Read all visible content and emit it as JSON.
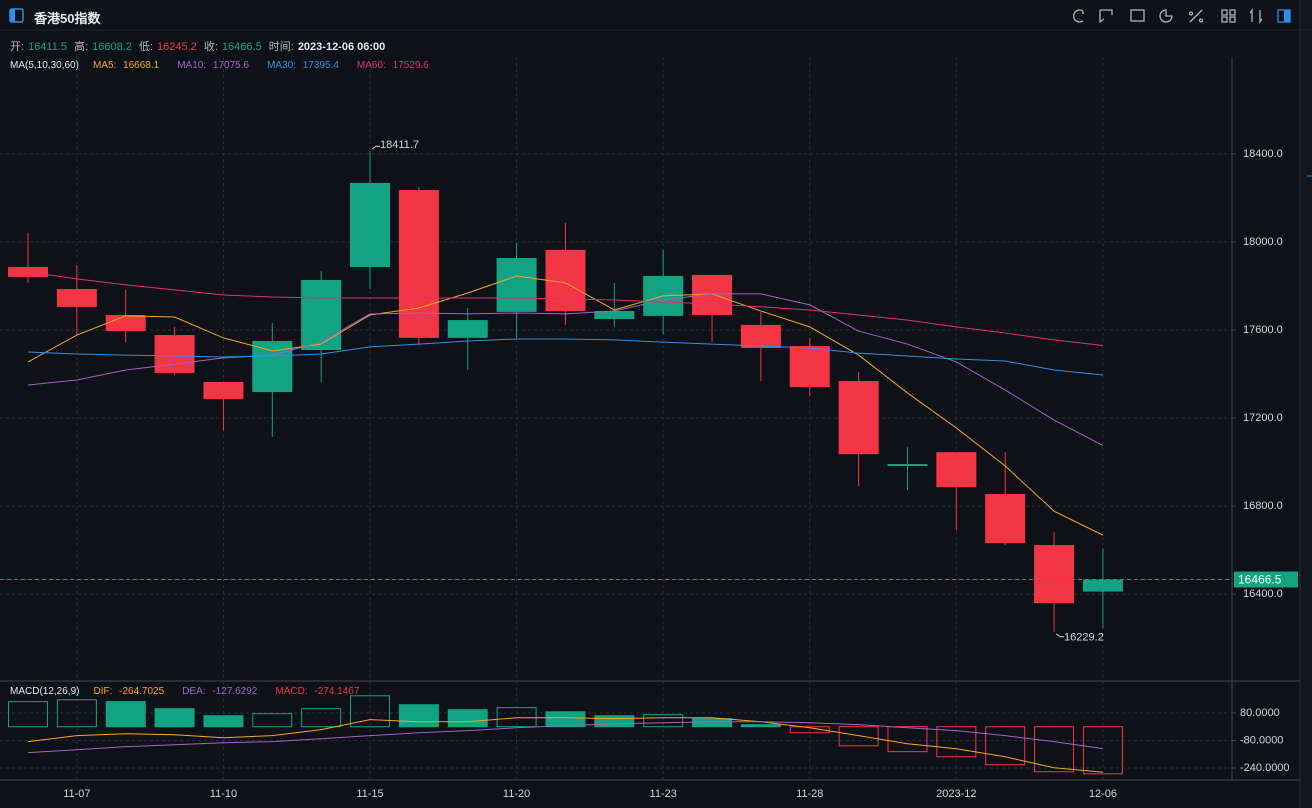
{
  "header": {
    "title": "香港50指数"
  },
  "info": {
    "labels": [
      "开:",
      "高:",
      "低:",
      "收:",
      "时间:"
    ],
    "time": "2023-12-06 06:00"
  },
  "chart_data": [
    {
      "type": "candlestick",
      "categories": [
        null,
        "11-07",
        null,
        null,
        "11-10",
        null,
        null,
        "11-15",
        null,
        null,
        "11-20",
        null,
        null,
        "11-23",
        null,
        null,
        "11-28",
        null,
        null,
        "2023-12",
        null,
        null,
        "12-06"
      ],
      "open": [
        17886,
        17786,
        17668,
        17577,
        17364,
        17318,
        17509,
        17886,
        18236,
        17564,
        17682,
        17964,
        17650,
        17664,
        17850,
        17623,
        17527,
        17368,
        16982,
        17045,
        16855,
        16623,
        16411.5
      ],
      "high": [
        18041,
        17895,
        17782,
        17614,
        17364,
        17632,
        17868,
        18411.7,
        18250,
        17700,
        17995,
        18086,
        17814,
        17964,
        17850,
        17682,
        17564,
        17409,
        17068,
        17045,
        17045,
        16682,
        16608.2
      ],
      "low": [
        17814,
        17577,
        17545,
        17395,
        17145,
        17114,
        17364,
        17786,
        17532,
        17418,
        17564,
        17623,
        17614,
        17582,
        17545,
        17368,
        17300,
        16891,
        16873,
        16691,
        16623,
        16229.2,
        16245.2
      ],
      "close": [
        17841,
        17705,
        17595,
        17405,
        17286,
        17550,
        17827,
        18268,
        17564,
        17645,
        17927,
        17686,
        17686,
        17845,
        17668,
        17518,
        17341,
        17036,
        16991,
        16886,
        16632,
        16359,
        16466.5
      ],
      "up_color": "#12a383",
      "down_color": "#f23645",
      "ylim": [
        16010,
        18840
      ],
      "yticks": [
        {
          "value": 18400,
          "label": "18400.0"
        },
        {
          "value": 18000,
          "label": "18000.0"
        },
        {
          "value": 17600,
          "label": "17600.0"
        },
        {
          "value": 17200,
          "label": "17200.0"
        },
        {
          "value": 16800,
          "label": "16800.0"
        },
        {
          "value": 16400,
          "label": "16400.0"
        }
      ],
      "grid": true,
      "legend_title": "MA(5,10,30,60)",
      "series": [
        {
          "name": "MA5",
          "color": "#f5a623",
          "values": [
            17455,
            17577,
            17664,
            17659,
            17564,
            17505,
            17536,
            17668,
            17700,
            17768,
            17845,
            17814,
            17691,
            17755,
            17764,
            17686,
            17614,
            17486,
            17314,
            17155,
            16982,
            16777,
            16668.1
          ]
        },
        {
          "name": "MA10",
          "color": "#a064c8",
          "values": [
            17350,
            17373,
            17418,
            17445,
            17473,
            17486,
            17545,
            17673,
            17677,
            17673,
            17677,
            17673,
            17686,
            17736,
            17764,
            17764,
            17714,
            17595,
            17536,
            17455,
            17327,
            17191,
            17075.6
          ]
        },
        {
          "name": "MA30",
          "color": "#2f8fe6",
          "values": [
            17500,
            17491,
            17486,
            17482,
            17477,
            17482,
            17491,
            17523,
            17536,
            17550,
            17559,
            17559,
            17555,
            17545,
            17536,
            17527,
            17518,
            17495,
            17482,
            17468,
            17459,
            17418,
            17395.4
          ]
        },
        {
          "name": "MA60",
          "color": "#e0306f",
          "values": [
            17864,
            17832,
            17805,
            17782,
            17759,
            17750,
            17745,
            17745,
            17745,
            17745,
            17745,
            17741,
            17736,
            17727,
            17718,
            17705,
            17691,
            17668,
            17645,
            17614,
            17586,
            17555,
            17529.6
          ]
        }
      ]
    },
    {
      "type": "macd",
      "legend_title": "MACD(12,26,9)",
      "bars": {
        "name": "MACD",
        "up_color": "#12a383",
        "down_color": "#f23645",
        "values": [
          146,
          157,
          146,
          105,
          64,
          76,
          105,
          180,
          128,
          99,
          111,
          87,
          64,
          70,
          47,
          12,
          -35,
          -111,
          -145,
          -175,
          -221,
          -262,
          -274.1467
        ]
      },
      "series": [
        {
          "name": "DIF",
          "color": "#f5a623",
          "values": [
            -87,
            -52,
            -41,
            -47,
            -64,
            -52,
            -17,
            41,
            29,
            29,
            52,
            52,
            47,
            52,
            52,
            29,
            -6,
            -52,
            -99,
            -128,
            -175,
            -239,
            -264.7025
          ]
        },
        {
          "name": "DEA",
          "color": "#a064c8",
          "values": [
            -151,
            -134,
            -116,
            -105,
            -93,
            -87,
            -70,
            -52,
            -35,
            -23,
            -6,
            6,
            17,
            23,
            29,
            29,
            23,
            12,
            -6,
            -23,
            -52,
            -87,
            -127.6292
          ]
        }
      ],
      "ylim": [
        -310,
        266
      ],
      "yticks": [
        {
          "value": 80,
          "label": "80.0000"
        },
        {
          "value": -80,
          "label": "-80.0000"
        },
        {
          "value": -240,
          "label": "-240.0000"
        }
      ]
    }
  ]
}
